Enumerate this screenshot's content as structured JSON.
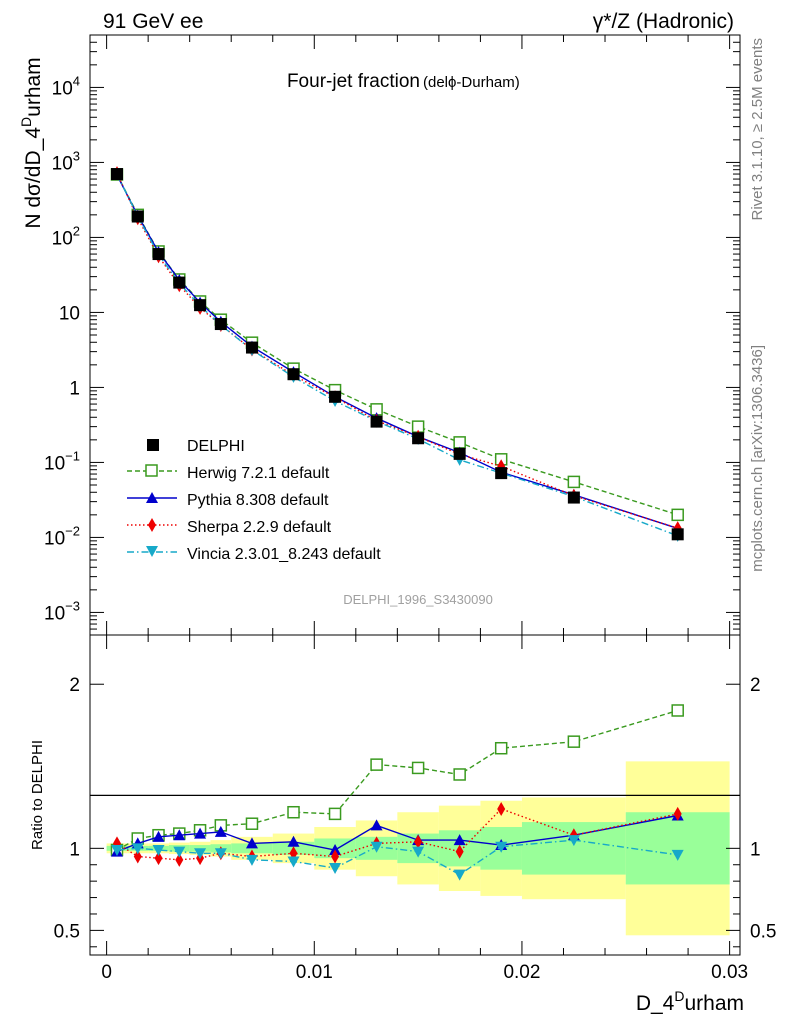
{
  "header": {
    "left": "91 GeV ee",
    "right": "γ*/Z (Hadronic)"
  },
  "side_labels": {
    "rivet": "Rivet 3.1.10, ≥ 2.5M events",
    "mcplots": "mcplots.cern.ch [arXiv:1306.3436]"
  },
  "chart_data": [
    {
      "type": "line",
      "panel": "main",
      "title": "Four-jet fraction",
      "title_suffix": "(delϕ-Durham)",
      "watermark": "DELPHI_1996_S3430090",
      "ylabel": "N dσ/dD_4^Durham",
      "ylabel_parts": {
        "base": "N dσ/dD_4",
        "sup": "D",
        "rest": "urham"
      },
      "yscale": "log",
      "ylim": [
        0.0005,
        50000
      ],
      "xlim": [
        -0.0008,
        0.0305
      ],
      "yticks": [
        {
          "value": 0.001,
          "base": "10",
          "exp": "−3"
        },
        {
          "value": 0.01,
          "base": "10",
          "exp": "−2"
        },
        {
          "value": 0.1,
          "base": "10",
          "exp": "−1"
        },
        {
          "value": 1,
          "base": "1",
          "exp": ""
        },
        {
          "value": 10,
          "base": "10",
          "exp": ""
        },
        {
          "value": 100,
          "base": "10",
          "exp": "2"
        },
        {
          "value": 1000,
          "base": "10",
          "exp": "3"
        },
        {
          "value": 10000,
          "base": "10",
          "exp": "4"
        }
      ],
      "legend_position": "lower-left",
      "data_series": {
        "name": "DELPHI",
        "x": [
          0.0005,
          0.0015,
          0.0025,
          0.0035,
          0.0045,
          0.0055,
          0.007,
          0.009,
          0.011,
          0.013,
          0.015,
          0.017,
          0.019,
          0.0225,
          0.0275
        ],
        "values": [
          700,
          190,
          60,
          25,
          12.5,
          7.0,
          3.4,
          1.5,
          0.75,
          0.35,
          0.21,
          0.13,
          0.072,
          0.034,
          0.011
        ]
      },
      "series": [
        {
          "name": "Herwig 7.2.1 default",
          "color": "#3a9a1f",
          "values": [
            690,
            200,
            65,
            27.5,
            14,
            8.0,
            3.95,
            1.78,
            0.92,
            0.51,
            0.3,
            0.185,
            0.11,
            0.055,
            0.02
          ]
        },
        {
          "name": "Pythia 8.308 default",
          "color": "#0000cc",
          "values": [
            680,
            195,
            64,
            27,
            13.5,
            7.5,
            3.5,
            1.6,
            0.75,
            0.39,
            0.22,
            0.135,
            0.074,
            0.037,
            0.0132
          ]
        },
        {
          "name": "Sherpa 2.2.9 default",
          "color": "#ee0000",
          "values": [
            720,
            180,
            56,
            23,
            11.5,
            6.8,
            3.2,
            1.45,
            0.74,
            0.36,
            0.22,
            0.128,
            0.089,
            0.036,
            0.0133
          ]
        },
        {
          "name": "Vincia 2.3.01_8.243 default",
          "color": "#17a9c9",
          "values": [
            695,
            190,
            59,
            24.5,
            12.2,
            6.8,
            3.15,
            1.38,
            0.66,
            0.355,
            0.205,
            0.108,
            0.072,
            0.035,
            0.0105
          ]
        }
      ]
    },
    {
      "type": "line",
      "panel": "ratio",
      "ylabel": "Ratio to DELPHI",
      "xlabel": "D_4^Durham",
      "xlabel_parts": {
        "base": "D_4",
        "sup": "D",
        "rest": "urham"
      },
      "ylim": [
        0.35,
        2.3
      ],
      "xlim": [
        -0.0008,
        0.0305
      ],
      "yticks": [
        {
          "value": 0.5,
          "label": "0.5"
        },
        {
          "value": 1,
          "label": "1"
        },
        {
          "value": 2,
          "label": "2"
        }
      ],
      "xticks": [
        {
          "value": 0,
          "label": "0"
        },
        {
          "value": 0.01,
          "label": "0.01"
        },
        {
          "value": 0.02,
          "label": "0.02"
        },
        {
          "value": 0.03,
          "label": "0.03"
        }
      ],
      "bins": [
        {
          "lo": 0.0,
          "hi": 0.001,
          "inner": 0.015,
          "outer": 0.03
        },
        {
          "lo": 0.001,
          "hi": 0.002,
          "inner": 0.015,
          "outer": 0.03
        },
        {
          "lo": 0.002,
          "hi": 0.003,
          "inner": 0.015,
          "outer": 0.03
        },
        {
          "lo": 0.003,
          "hi": 0.004,
          "inner": 0.02,
          "outer": 0.035
        },
        {
          "lo": 0.004,
          "hi": 0.005,
          "inner": 0.02,
          "outer": 0.04
        },
        {
          "lo": 0.005,
          "hi": 0.006,
          "inner": 0.025,
          "outer": 0.05
        },
        {
          "lo": 0.006,
          "hi": 0.008,
          "inner": 0.03,
          "outer": 0.07
        },
        {
          "lo": 0.008,
          "hi": 0.01,
          "inner": 0.04,
          "outer": 0.09
        },
        {
          "lo": 0.01,
          "hi": 0.012,
          "inner": 0.06,
          "outer": 0.13
        },
        {
          "lo": 0.012,
          "hi": 0.014,
          "inner": 0.07,
          "outer": 0.17
        },
        {
          "lo": 0.014,
          "hi": 0.016,
          "inner": 0.09,
          "outer": 0.22
        },
        {
          "lo": 0.016,
          "hi": 0.018,
          "inner": 0.11,
          "outer": 0.26
        },
        {
          "lo": 0.018,
          "hi": 0.02,
          "inner": 0.13,
          "outer": 0.29
        },
        {
          "lo": 0.02,
          "hi": 0.025,
          "inner": 0.16,
          "outer": 0.31
        },
        {
          "lo": 0.025,
          "hi": 0.03,
          "inner": 0.22,
          "outer": 0.53
        }
      ],
      "x": [
        0.0005,
        0.0015,
        0.0025,
        0.0035,
        0.0045,
        0.0055,
        0.007,
        0.009,
        0.011,
        0.013,
        0.015,
        0.017,
        0.019,
        0.0225,
        0.0275
      ],
      "series": [
        {
          "name": "Herwig 7.2.1 default",
          "color": "#3a9a1f",
          "values": [
            0.99,
            1.06,
            1.08,
            1.09,
            1.11,
            1.14,
            1.15,
            1.22,
            1.21,
            1.51,
            1.49,
            1.45,
            1.61,
            1.65,
            1.84
          ]
        },
        {
          "name": "Pythia 8.308 default",
          "color": "#0000cc",
          "values": [
            0.98,
            1.03,
            1.07,
            1.08,
            1.09,
            1.1,
            1.03,
            1.04,
            0.99,
            1.14,
            1.05,
            1.05,
            1.02,
            1.08,
            1.2
          ]
        },
        {
          "name": "Sherpa 2.2.9 default",
          "color": "#ee0000",
          "values": [
            1.03,
            0.95,
            0.94,
            0.93,
            0.94,
            0.97,
            0.95,
            0.97,
            0.95,
            1.03,
            1.04,
            0.98,
            1.24,
            1.08,
            1.21
          ]
        },
        {
          "name": "Vincia 2.3.01_8.243 default",
          "color": "#17a9c9",
          "values": [
            0.99,
            1.0,
            0.99,
            0.98,
            0.97,
            0.97,
            0.93,
            0.92,
            0.88,
            1.01,
            0.98,
            0.84,
            1.01,
            1.05,
            0.96
          ]
        }
      ]
    }
  ]
}
